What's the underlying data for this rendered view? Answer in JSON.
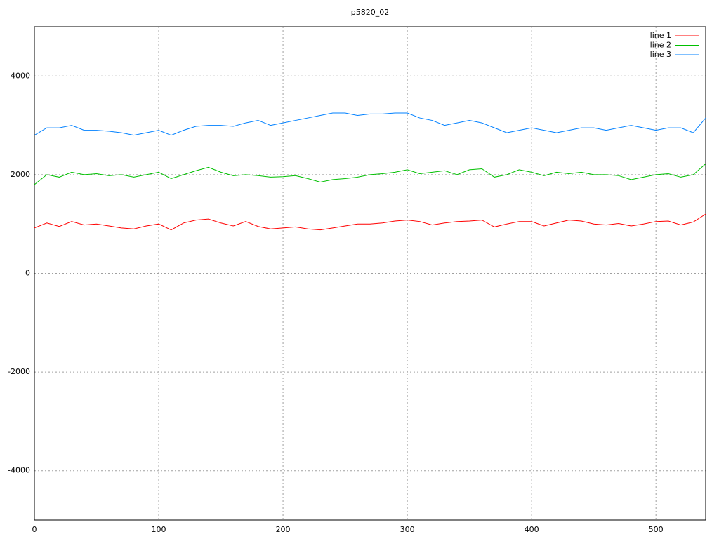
{
  "chart_data": {
    "type": "line",
    "title": "p5820_02",
    "x": [
      0,
      10,
      20,
      30,
      40,
      50,
      60,
      70,
      80,
      90,
      100,
      110,
      120,
      130,
      140,
      150,
      160,
      170,
      180,
      190,
      200,
      210,
      220,
      230,
      240,
      250,
      260,
      270,
      280,
      290,
      300,
      310,
      320,
      330,
      340,
      350,
      360,
      370,
      380,
      390,
      400,
      410,
      420,
      430,
      440,
      450,
      460,
      470,
      480,
      490,
      500,
      510,
      520,
      530,
      540
    ],
    "series": [
      {
        "name": "line 1",
        "color": "#ff0000",
        "values": [
          920,
          1020,
          950,
          1050,
          980,
          1000,
          960,
          920,
          900,
          960,
          1000,
          880,
          1020,
          1080,
          1100,
          1020,
          960,
          1050,
          950,
          900,
          920,
          940,
          900,
          880,
          920,
          960,
          1000,
          1000,
          1020,
          1060,
          1080,
          1050,
          980,
          1020,
          1050,
          1060,
          1080,
          940,
          1000,
          1050,
          1050,
          960,
          1020,
          1080,
          1060,
          1000,
          980,
          1010,
          960,
          1000,
          1050,
          1060,
          980,
          1040,
          1200
        ]
      },
      {
        "name": "line 2",
        "color": "#00c000",
        "values": [
          1800,
          2000,
          1950,
          2050,
          2000,
          2020,
          1980,
          2000,
          1950,
          2000,
          2050,
          1920,
          2000,
          2080,
          2150,
          2050,
          1980,
          2000,
          1980,
          1950,
          1960,
          1980,
          1920,
          1850,
          1900,
          1920,
          1950,
          2000,
          2020,
          2050,
          2100,
          2020,
          2050,
          2080,
          2000,
          2100,
          2120,
          1950,
          2000,
          2100,
          2050,
          1980,
          2050,
          2020,
          2050,
          2000,
          2000,
          1980,
          1900,
          1950,
          2000,
          2020,
          1950,
          2000,
          2220
        ]
      },
      {
        "name": "line 3",
        "color": "#0080ff",
        "values": [
          2800,
          2950,
          2950,
          3000,
          2900,
          2900,
          2880,
          2850,
          2800,
          2850,
          2900,
          2800,
          2900,
          2980,
          3000,
          3000,
          2980,
          3050,
          3100,
          3000,
          3050,
          3100,
          3150,
          3200,
          3250,
          3250,
          3200,
          3230,
          3230,
          3250,
          3250,
          3150,
          3100,
          3000,
          3050,
          3100,
          3050,
          2950,
          2850,
          2900,
          2950,
          2900,
          2850,
          2900,
          2950,
          2950,
          2900,
          2950,
          3000,
          2950,
          2900,
          2950,
          2950,
          2850,
          3150
        ]
      }
    ],
    "xlim": [
      0,
      540
    ],
    "xticks": [
      0,
      100,
      200,
      300,
      400,
      500
    ],
    "ylim": [
      -5000,
      5000
    ],
    "yticks": [
      -4000,
      -2000,
      0,
      2000,
      4000
    ],
    "grid": true,
    "legend": "top-right"
  }
}
